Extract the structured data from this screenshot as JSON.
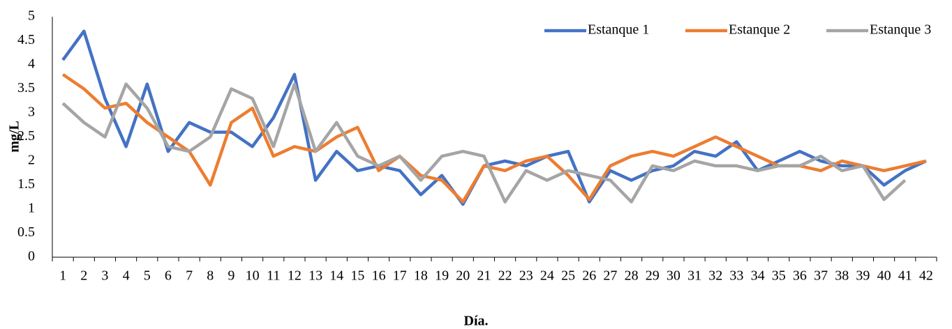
{
  "chart_data": {
    "type": "line",
    "x_label": "Día.",
    "y_label": "mg/L",
    "categories": [
      "1",
      "2",
      "3",
      "4",
      "5",
      "6",
      "7",
      "8",
      "9",
      "10",
      "11",
      "12",
      "13",
      "14",
      "15",
      "16",
      "17",
      "18",
      "19",
      "20",
      "21",
      "22",
      "23",
      "24",
      "25",
      "26",
      "27",
      "28",
      "29",
      "30",
      "31",
      "32",
      "33",
      "34",
      "35",
      "36",
      "37",
      "38",
      "39",
      "40",
      "41",
      "42"
    ],
    "series": [
      {
        "name": "Estanque 1",
        "color": "#4472c4",
        "values": [
          4.1,
          4.7,
          3.3,
          2.3,
          3.6,
          2.2,
          2.8,
          2.6,
          2.6,
          2.3,
          2.9,
          3.8,
          1.6,
          2.2,
          1.8,
          1.9,
          1.8,
          1.3,
          1.7,
          1.1,
          1.9,
          2.0,
          1.9,
          2.1,
          2.2,
          1.15,
          1.8,
          1.6,
          1.8,
          1.9,
          2.2,
          2.1,
          2.4,
          1.8,
          2.0,
          2.2,
          2.0,
          1.9,
          1.9,
          1.5,
          1.8,
          2.0
        ]
      },
      {
        "name": "Estanque 2",
        "color": "#ed7d31",
        "values": [
          3.8,
          3.5,
          3.1,
          3.2,
          2.8,
          2.5,
          2.2,
          1.5,
          2.8,
          3.1,
          2.1,
          2.3,
          2.2,
          2.5,
          2.7,
          1.8,
          2.1,
          1.7,
          1.6,
          1.15,
          1.9,
          1.8,
          2.0,
          2.1,
          1.7,
          1.2,
          1.9,
          2.1,
          2.2,
          2.1,
          2.3,
          2.5,
          2.3,
          2.1,
          1.9,
          1.9,
          1.8,
          2.0,
          1.9,
          1.8,
          1.9,
          2.0
        ]
      },
      {
        "name": "Estanque 3",
        "color": "#a5a5a5",
        "values": [
          3.2,
          2.8,
          2.5,
          3.6,
          3.1,
          2.3,
          2.2,
          2.5,
          3.5,
          3.3,
          2.3,
          3.6,
          2.2,
          2.8,
          2.1,
          1.9,
          2.1,
          1.6,
          2.1,
          2.2,
          2.1,
          1.15,
          1.8,
          1.6,
          1.8,
          1.7,
          1.6,
          1.15,
          1.9,
          1.8,
          2.0,
          1.9,
          1.9,
          1.8,
          1.9,
          1.9,
          2.1,
          1.8,
          1.9,
          1.2,
          1.6,
          null
        ]
      }
    ],
    "ylim": [
      0,
      5
    ],
    "yticks": [
      0,
      0.5,
      1,
      1.5,
      2,
      2.5,
      3,
      3.5,
      4,
      4.5,
      5
    ],
    "grid": false,
    "legend": "top-right"
  }
}
